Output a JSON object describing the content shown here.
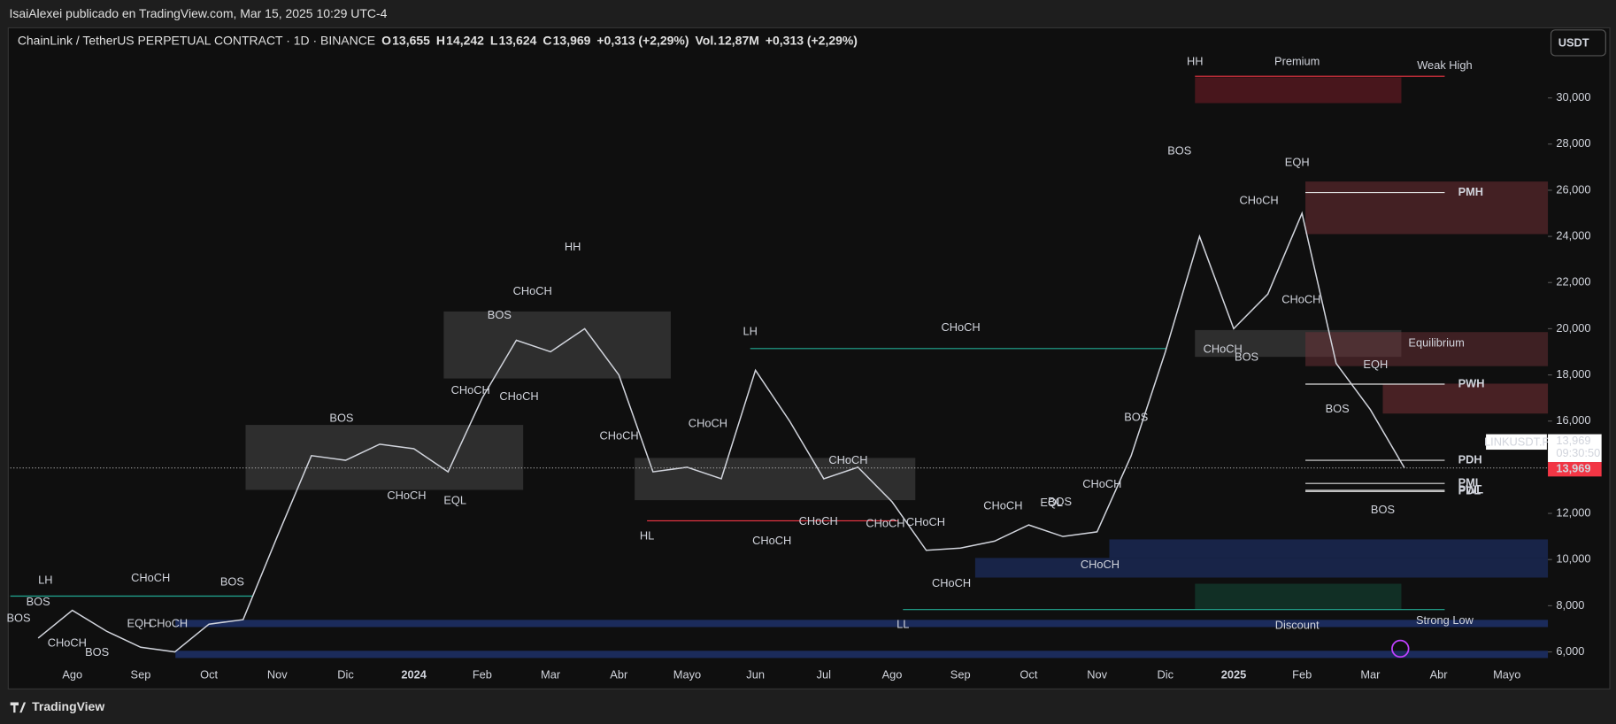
{
  "header": {
    "publisher": "IsaiAlexei publicado en TradingView.com, Mar 15, 2025 10:29 UTC-4",
    "brand": "TradingView"
  },
  "legend": {
    "symbol": "ChainLink / TetherUS PERPETUAL CONTRACT · 1D · BINANCE",
    "o_label": "O",
    "o": "13,655",
    "h_label": "H",
    "h": "14,242",
    "l_label": "L",
    "l": "13,624",
    "c_label": "C",
    "c": "13,969",
    "change": "+0,313 (+2,29%)",
    "vol_label": "Vol.",
    "vol": "12,87M",
    "vol_change": "+0,313 (+2,29%)"
  },
  "currency_button": "USDT",
  "price_tag": "13,969",
  "symbol_tag": "LINKUSDT.P",
  "countdown": "09:30:50",
  "chart_data": {
    "type": "line",
    "categories": [
      null,
      "Ago",
      null,
      "Sep",
      null,
      "Oct",
      null,
      "Nov",
      null,
      "Dic",
      null,
      "2024",
      null,
      "Feb",
      null,
      "Mar",
      null,
      "Abr",
      null,
      "Mayo",
      null,
      "Jun",
      null,
      "Jul",
      null,
      "Ago",
      null,
      "Sep",
      null,
      "Oct",
      null,
      "Nov",
      null,
      "Dic",
      null,
      "2025",
      null,
      "Feb",
      null,
      "Mar",
      null,
      "Abr",
      null,
      "Mayo"
    ],
    "series": [
      {
        "name": "LINKUSDT.P",
        "color": "#d1d4dc",
        "values": [
          6.6,
          7.8,
          6.9,
          6.2,
          6.0,
          7.2,
          7.4,
          11.0,
          14.5,
          14.3,
          15.0,
          14.8,
          13.8,
          17.0,
          19.5,
          19.0,
          20.0,
          18.0,
          13.8,
          14.0,
          13.5,
          18.2,
          16.0,
          13.5,
          14.0,
          12.5,
          10.4,
          10.5,
          10.8,
          11.5,
          11.0,
          11.2,
          14.5,
          19.0,
          24.0,
          20.0,
          21.5,
          25.0,
          18.5,
          16.5,
          13.969,
          null,
          null,
          null
        ]
      }
    ],
    "ylim": [
      4.53,
      32.99
    ],
    "yticks": [
      {
        "value": 6,
        "label": "6,000"
      },
      {
        "value": 8,
        "label": "8,000"
      },
      {
        "value": 10,
        "label": "10,000"
      },
      {
        "value": 12,
        "label": "12,000"
      },
      {
        "value": 14,
        "label": "14,000"
      },
      {
        "value": 16,
        "label": "16,000"
      },
      {
        "value": 18,
        "label": "18,000"
      },
      {
        "value": 20,
        "label": "20,000"
      },
      {
        "value": 22,
        "label": "22,000"
      },
      {
        "value": 24,
        "label": "24,000"
      },
      {
        "value": 26,
        "label": "26,000"
      },
      {
        "value": 28,
        "label": "28,000"
      },
      {
        "value": 30,
        "label": "30,000"
      }
    ],
    "current_price": 13.969,
    "levels": [
      {
        "label": "PMH",
        "value": 25.9
      },
      {
        "label": "PWH",
        "value": 17.6
      },
      {
        "label": "PDH",
        "value": 14.3
      },
      {
        "label": "PML",
        "value": 13.3
      },
      {
        "label": "PWL",
        "value": 13.0
      },
      {
        "label": "PDL",
        "value": 12.95
      }
    ],
    "annotations": [
      "HH",
      "Premium",
      "Weak High",
      "BOS",
      "EQH",
      "CHoCH",
      "CHoCH",
      "CHoCH",
      "BOS",
      "Equilibrium",
      "EQH",
      "BOS",
      "BOS",
      "HH",
      "CHoCH",
      "BOS",
      "CHoCH",
      "CHoCH",
      "CHoCH",
      "LH",
      "CHoCH",
      "CHoCH",
      "BOS",
      "CHoCH",
      "EQL",
      "HL",
      "CHoCH",
      "CHoCH",
      "CHoCH",
      "CHoCH",
      "BOS",
      "CHoCH",
      "CHoCH",
      "EQL",
      "BOS",
      "CHoCH",
      "CHoCH",
      "CHoCH",
      "LL",
      "Discount",
      "Strong Low",
      "LH",
      "CHoCH",
      "BOS",
      "BOS",
      "BOS",
      "EQH",
      "CHoCH",
      "CHoCH",
      "BOS"
    ]
  }
}
